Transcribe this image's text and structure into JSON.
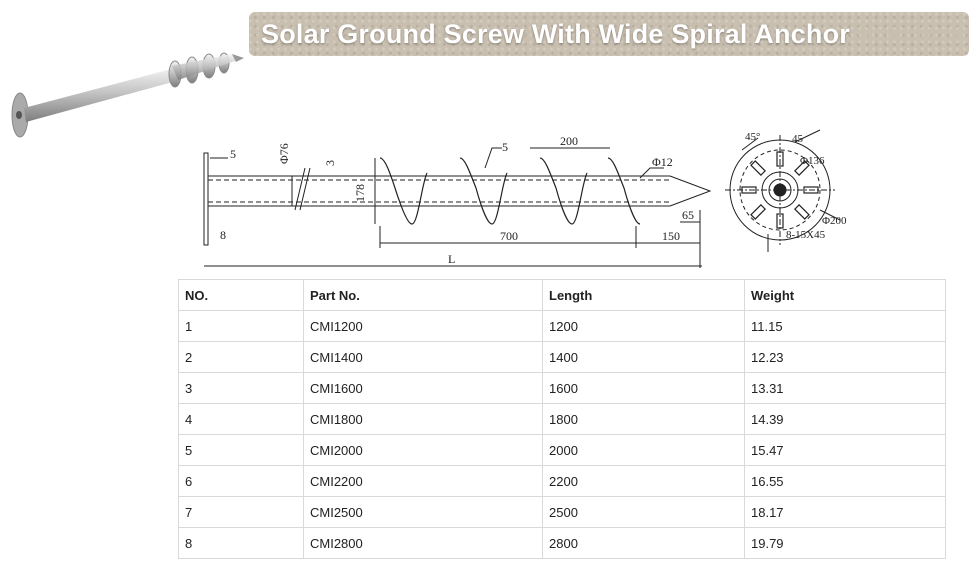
{
  "banner": {
    "title": "Solar Ground Screw With Wide Spiral Anchor"
  },
  "drawing": {
    "labels": {
      "d76": "Φ76",
      "t5": "5",
      "t3": "3",
      "d178": "178",
      "w5": "5",
      "p200": "200",
      "d12": "Φ12",
      "l65": "65",
      "l8": "8",
      "l700": "700",
      "l150": "150",
      "L": "L",
      "a45": "45°",
      "a45b": "45",
      "d136": "Φ136",
      "d200": "Φ200",
      "holes": "8-15X45"
    }
  },
  "table": {
    "headers": [
      "NO.",
      "Part No.",
      "Length",
      "Weight"
    ],
    "rows": [
      [
        "1",
        "CMI1200",
        "1200",
        "11.15"
      ],
      [
        "2",
        "CMI1400",
        "1400",
        "12.23"
      ],
      [
        "3",
        "CMI1600",
        "1600",
        "13.31"
      ],
      [
        "4",
        "CMI1800",
        "1800",
        "14.39"
      ],
      [
        "5",
        "CMI2000",
        "2000",
        "15.47"
      ],
      [
        "6",
        "CMI2200",
        "2200",
        "16.55"
      ],
      [
        "7",
        "CMI2500",
        "2500",
        "18.17"
      ],
      [
        "8",
        "CMI2800",
        "2800",
        "19.79"
      ]
    ]
  }
}
